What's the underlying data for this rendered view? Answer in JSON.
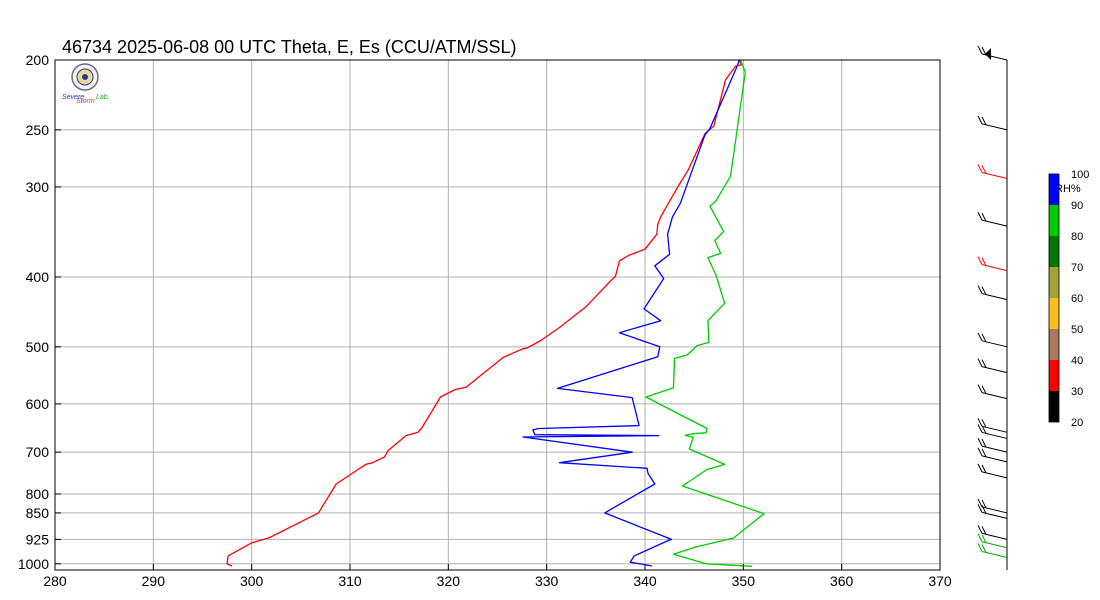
{
  "chart_data": {
    "type": "line",
    "title": "46734  2025-06-08 00 UTC  Theta, E, Es (CCU/ATM/SSL)",
    "xlabel": "",
    "ylabel": "",
    "xlim": [
      280,
      370
    ],
    "ylim": [
      1020,
      200
    ],
    "y_scale": "log (pressure, hPa)",
    "grid": true,
    "x_ticks": [
      280,
      290,
      300,
      310,
      320,
      330,
      340,
      350,
      360,
      370
    ],
    "y_ticks": [
      200,
      250,
      300,
      400,
      500,
      600,
      700,
      800,
      850,
      925,
      1000
    ],
    "series": [
      {
        "color": "#ff0000",
        "points": [
          [
            298.0,
            1007
          ],
          [
            297.5,
            1000
          ],
          [
            297.6,
            975
          ],
          [
            300.0,
            935
          ],
          [
            301.8,
            920
          ],
          [
            306.8,
            850
          ],
          [
            308.6,
            775
          ],
          [
            311.6,
            728
          ],
          [
            312.3,
            724
          ],
          [
            313.5,
            711
          ],
          [
            313.9,
            696
          ],
          [
            315.7,
            664
          ],
          [
            316.9,
            657
          ],
          [
            317.3,
            648
          ],
          [
            319.2,
            587
          ],
          [
            320.7,
            573
          ],
          [
            321.8,
            569
          ],
          [
            325.6,
            517
          ],
          [
            327.6,
            503
          ],
          [
            328.0,
            502
          ],
          [
            329.4,
            490
          ],
          [
            331.3,
            470
          ],
          [
            334.0,
            440
          ],
          [
            336.5,
            405
          ],
          [
            337.0,
            399
          ],
          [
            337.4,
            380
          ],
          [
            338.4,
            373
          ],
          [
            340.0,
            366
          ],
          [
            341.2,
            349
          ],
          [
            341.3,
            338
          ],
          [
            341.6,
            330
          ],
          [
            343.4,
            299
          ],
          [
            344.4,
            284
          ],
          [
            346.1,
            253
          ],
          [
            347.0,
            247
          ],
          [
            348.2,
            213
          ],
          [
            349.2,
            204
          ],
          [
            349.8,
            203
          ],
          [
            349.6,
            200
          ]
        ]
      },
      {
        "color": "#0000ff",
        "points": [
          [
            340.7,
            1007
          ],
          [
            338.5,
            995
          ],
          [
            338.9,
            975
          ],
          [
            342.4,
            928
          ],
          [
            342.7,
            925
          ],
          [
            335.9,
            850
          ],
          [
            341.0,
            775
          ],
          [
            340.3,
            749
          ],
          [
            340.2,
            737
          ],
          [
            331.3,
            724
          ],
          [
            338.7,
            700
          ],
          [
            327.6,
            667
          ],
          [
            341.4,
            664
          ],
          [
            328.8,
            662
          ],
          [
            328.6,
            652
          ],
          [
            329.2,
            649
          ],
          [
            339.4,
            643
          ],
          [
            338.7,
            588
          ],
          [
            331.1,
            571
          ],
          [
            341.3,
            516
          ],
          [
            341.5,
            500
          ],
          [
            337.4,
            478
          ],
          [
            341.6,
            460
          ],
          [
            339.9,
            443
          ],
          [
            341.9,
            402
          ],
          [
            341.0,
            386
          ],
          [
            342.5,
            372
          ],
          [
            342.3,
            349
          ],
          [
            342.8,
            330
          ],
          [
            343.6,
            316
          ],
          [
            346.1,
            254
          ],
          [
            346.6,
            249
          ],
          [
            349.3,
            205
          ],
          [
            349.6,
            200
          ]
        ]
      },
      {
        "color": "#00cc00",
        "points": [
          [
            350.9,
            1008
          ],
          [
            346.2,
            1000
          ],
          [
            342.9,
            970
          ],
          [
            345.1,
            948
          ],
          [
            349.0,
            921
          ],
          [
            352.1,
            852
          ],
          [
            343.8,
            780
          ],
          [
            346.3,
            740
          ],
          [
            348.1,
            728
          ],
          [
            344.5,
            693
          ],
          [
            344.9,
            668
          ],
          [
            344.1,
            663
          ],
          [
            344.8,
            660
          ],
          [
            346.2,
            658
          ],
          [
            346.3,
            649
          ],
          [
            340.1,
            587
          ],
          [
            342.9,
            570
          ],
          [
            343.0,
            519
          ],
          [
            344.3,
            513
          ],
          [
            345.3,
            498
          ],
          [
            346.5,
            493
          ],
          [
            346.4,
            460
          ],
          [
            348.1,
            435
          ],
          [
            347.2,
            397
          ],
          [
            346.4,
            376
          ],
          [
            347.7,
            371
          ],
          [
            347.1,
            356
          ],
          [
            348.0,
            346
          ],
          [
            346.6,
            319
          ],
          [
            347.2,
            314
          ],
          [
            348.7,
            290
          ],
          [
            350.2,
            208
          ],
          [
            349.7,
            200
          ]
        ]
      }
    ],
    "colorbar": {
      "title": "RH%",
      "ticks": [
        "100",
        "90",
        "80",
        "70",
        "60",
        "50",
        "40",
        "30",
        "20"
      ],
      "colors": [
        "#0000ff",
        "#00cc00",
        "#007700",
        "#a3a33a",
        "#ffbb22",
        "#a57a5f",
        "#ff0000",
        "#000000"
      ]
    },
    "wind_barbs": {
      "levels_hpa": [
        200,
        250,
        292,
        340,
        392,
        430,
        500,
        543,
        590,
        657,
        670,
        700,
        722,
        760,
        850,
        865,
        925,
        950,
        980
      ],
      "colors": [
        "#000000",
        "#000000",
        "#ff0000",
        "#000000",
        "#ff0000",
        "#000000",
        "#000000",
        "#000000",
        "#000000",
        "#000000",
        "#000000",
        "#000000",
        "#000000",
        "#000000",
        "#000000",
        "#000000",
        "#000000",
        "#00aa00",
        "#00aa00"
      ]
    }
  },
  "logo": {
    "line1": "Severe",
    "line2": "Storm",
    "line3": "Lab."
  }
}
